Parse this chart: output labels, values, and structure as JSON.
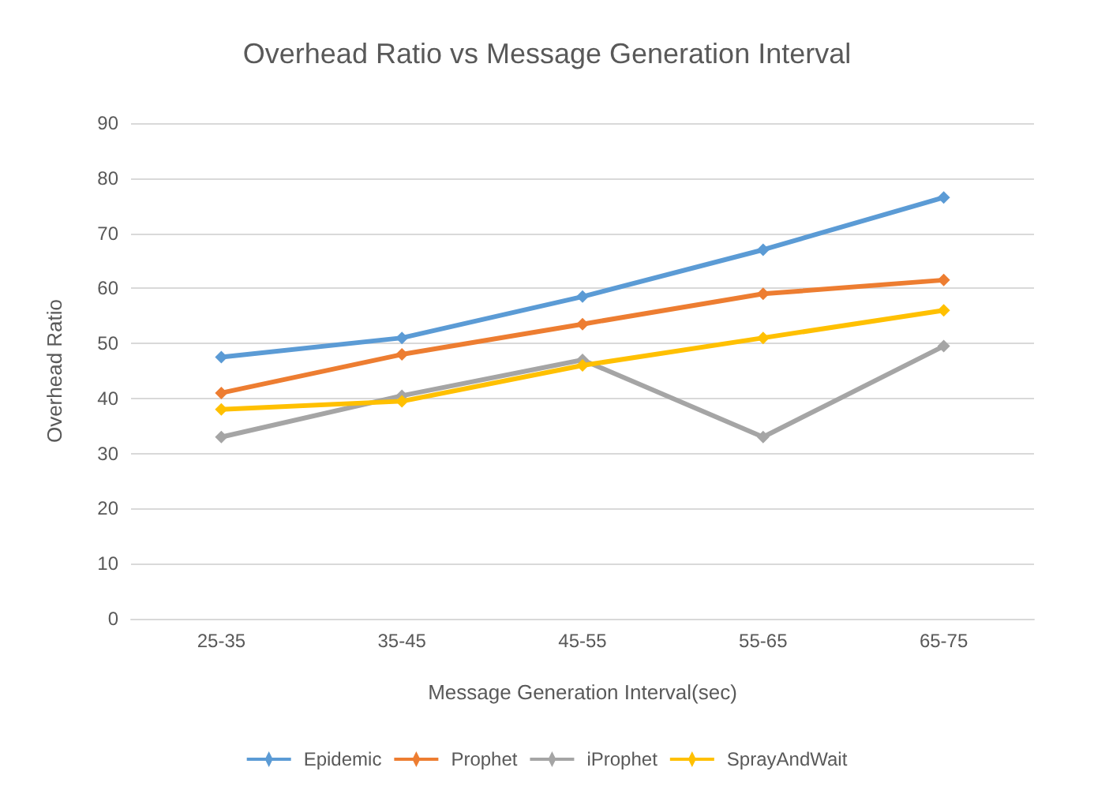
{
  "chart_data": {
    "type": "line",
    "title": "Overhead Ratio vs Message Generation Interval",
    "xlabel": "Message Generation Interval(sec)",
    "ylabel": "Overhead Ratio",
    "categories": [
      "25-35",
      "35-45",
      "45-55",
      "55-65",
      "65-75"
    ],
    "series": [
      {
        "name": "Epidemic",
        "color": "#5b9bd5",
        "values": [
          47.5,
          51,
          58.5,
          67,
          76.5
        ]
      },
      {
        "name": "Prophet",
        "color": "#ed7d31",
        "values": [
          41,
          48,
          53.5,
          59,
          61.5
        ]
      },
      {
        "name": "iProphet",
        "color": "#a5a5a5",
        "values": [
          33,
          40.5,
          47,
          33,
          49.5
        ]
      },
      {
        "name": "SprayAndWait",
        "color": "#ffc000",
        "values": [
          38,
          39.5,
          46,
          51,
          56
        ]
      }
    ],
    "ylim": [
      0,
      90
    ],
    "yticks": [
      0,
      10,
      20,
      30,
      40,
      50,
      60,
      70,
      80,
      90
    ],
    "grid": "y",
    "legend": "bottom",
    "marker": "diamond"
  }
}
